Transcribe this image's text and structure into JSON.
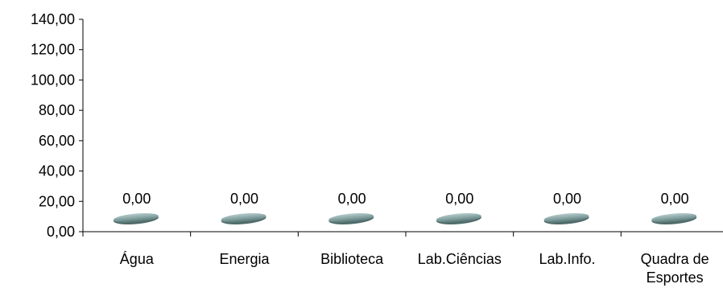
{
  "chart_data": {
    "type": "bar",
    "categories": [
      "Água",
      "Energia",
      "Biblioteca",
      "Lab.Ciências",
      "Lab.Info.",
      "Quadra de Esportes"
    ],
    "category_lines": [
      [
        "Água"
      ],
      [
        "Energia"
      ],
      [
        "Biblioteca"
      ],
      [
        "Lab.Ciências"
      ],
      [
        "Lab.Info."
      ],
      [
        "Quadra de",
        "Esportes"
      ]
    ],
    "values": [
      0,
      0,
      0,
      0,
      0,
      0
    ],
    "data_labels": [
      "0,00",
      "0,00",
      "0,00",
      "0,00",
      "0,00",
      "0,00"
    ],
    "ylim": [
      0,
      140
    ],
    "yticks": [
      0,
      20,
      40,
      60,
      80,
      100,
      120,
      140
    ],
    "ytick_labels": [
      "0,00",
      "20,00",
      "40,00",
      "60,00",
      "80,00",
      "100,00",
      "120,00",
      "140,00"
    ],
    "title": "",
    "xlabel": "",
    "ylabel": "",
    "grid": false,
    "legend": "none",
    "colors": {
      "bar": "#7f9d9d",
      "bar_highlight": "#b7cccc",
      "bar_shadow": "#4f6a6a",
      "axis": "#000000"
    }
  }
}
